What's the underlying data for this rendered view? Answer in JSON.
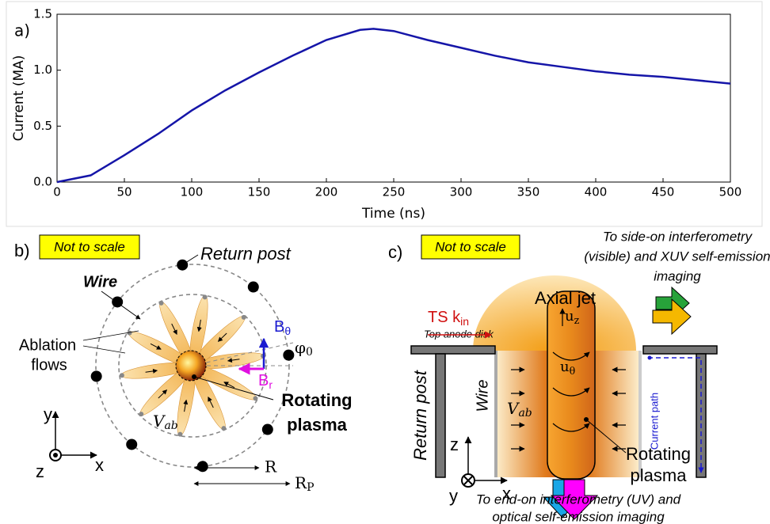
{
  "chart_data": {
    "type": "line",
    "panel_label": "a)",
    "xlabel": "Time (ns)",
    "ylabel": "Current (MA)",
    "x": [
      0,
      25,
      50,
      75,
      100,
      125,
      150,
      175,
      200,
      225,
      235,
      250,
      275,
      300,
      325,
      350,
      375,
      400,
      425,
      450,
      475,
      500
    ],
    "values": [
      0,
      0.06,
      0.24,
      0.43,
      0.64,
      0.82,
      0.98,
      1.13,
      1.27,
      1.36,
      1.37,
      1.35,
      1.27,
      1.2,
      1.13,
      1.07,
      1.03,
      0.99,
      0.96,
      0.94,
      0.91,
      0.88
    ],
    "color": "#1515a8",
    "xlim": [
      0,
      500
    ],
    "ylim": [
      0,
      1.5
    ],
    "xticks": [
      0,
      50,
      100,
      150,
      200,
      250,
      300,
      350,
      400,
      450,
      500
    ],
    "yticks": [
      {
        "value": 0,
        "label": "0.0"
      },
      0.5,
      {
        "value": 1,
        "label": "1.0"
      },
      1.5
    ]
  },
  "panel_b": {
    "label": "b)",
    "note": "Not to scale",
    "return_post": "Return post",
    "wire": "Wire",
    "ablation_flows": [
      "Ablation",
      "flows"
    ],
    "b_theta": {
      "base": "B",
      "sub": "θ"
    },
    "b_r": {
      "base": "B",
      "sub": "r"
    },
    "phi0": {
      "base": "φ",
      "sub": "0"
    },
    "v_ab": {
      "base": "V",
      "sub": "ab"
    },
    "rotating_plasma": [
      "Rotating",
      "plasma"
    ],
    "axes": {
      "y": "y",
      "x": "x",
      "z": "z"
    },
    "r": "R",
    "r_p": {
      "base": "R",
      "sub": "P"
    }
  },
  "panel_c": {
    "label": "c)",
    "note": "Not to scale",
    "side_on": [
      "To side-on interferometry",
      "(visible) and XUV self-emission",
      "imaging"
    ],
    "axial_jet": "Axial jet",
    "ts_k": {
      "base": "TS k",
      "sub": "in"
    },
    "top_anode": "Top anode disk",
    "u_z": {
      "base": "u",
      "sub": "z"
    },
    "u_theta": {
      "base": "u",
      "sub": "θ"
    },
    "return_post": "Return post",
    "wire": "Wire",
    "v_ab": {
      "base": "V",
      "sub": "ab"
    },
    "current_path": "Current path",
    "rotating_plasma": [
      "Rotating",
      "plasma"
    ],
    "axes": {
      "z": "z",
      "y": "y",
      "x": "x"
    },
    "end_on": [
      "To end-on interferometry (UV) and",
      "optical self-emission imaging"
    ]
  }
}
